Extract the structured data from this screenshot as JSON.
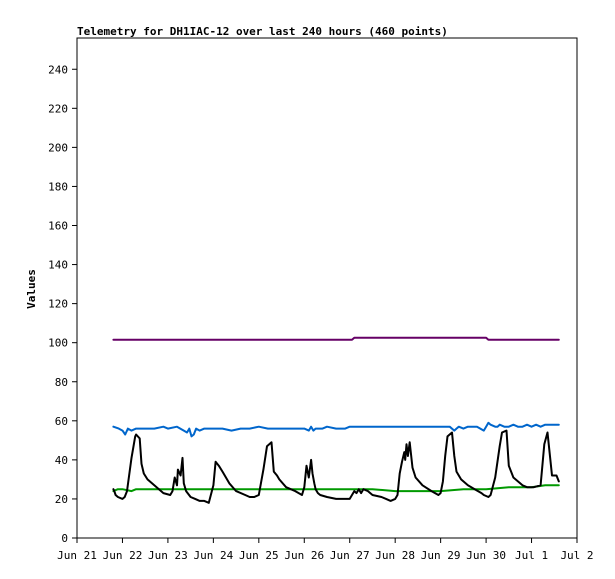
{
  "chart_data": {
    "type": "line",
    "title": "Telemetry for DH1IAC-12 over last 240 hours (460 points)",
    "xlabel": "",
    "ylabel": "Values",
    "ylim": [
      0,
      256
    ],
    "yticks": [
      0,
      20,
      40,
      60,
      80,
      100,
      120,
      140,
      160,
      180,
      200,
      220,
      240
    ],
    "xlim": [
      0,
      11
    ],
    "xticks": [
      {
        "label": "Jun 21",
        "value": 0
      },
      {
        "label": "Jun 22",
        "value": 1
      },
      {
        "label": "Jun 23",
        "value": 2
      },
      {
        "label": "Jun 24",
        "value": 3
      },
      {
        "label": "Jun 25",
        "value": 4
      },
      {
        "label": "Jun 26",
        "value": 5
      },
      {
        "label": "Jun 27",
        "value": 6
      },
      {
        "label": "Jun 28",
        "value": 7
      },
      {
        "label": "Jun 29",
        "value": 8
      },
      {
        "label": "Jun 30",
        "value": 9
      },
      {
        "label": "Jul 1",
        "value": 10
      },
      {
        "label": "Jul 2",
        "value": 11
      }
    ],
    "grid": false,
    "legend": "none",
    "series": [
      {
        "color": "#660066",
        "x": [
          0.8,
          6.05,
          6.1,
          9.0,
          9.05,
          10.6
        ],
        "values": [
          101.5,
          101.5,
          102.5,
          102.5,
          101.5,
          101.5
        ]
      },
      {
        "color": "#0066cc",
        "x": [
          0.8,
          0.92,
          1.0,
          1.06,
          1.12,
          1.2,
          1.3,
          1.5,
          1.7,
          1.9,
          2.0,
          2.2,
          2.35,
          2.42,
          2.47,
          2.52,
          2.57,
          2.62,
          2.7,
          2.8,
          3.0,
          3.2,
          3.4,
          3.6,
          3.8,
          4.0,
          4.2,
          4.4,
          4.6,
          4.8,
          5.0,
          5.1,
          5.15,
          5.2,
          5.25,
          5.3,
          5.4,
          5.5,
          5.7,
          5.9,
          6.0,
          6.2,
          6.5,
          7.0,
          7.5,
          8.0,
          8.2,
          8.3,
          8.35,
          8.4,
          8.5,
          8.6,
          8.8,
          8.95,
          9.0,
          9.05,
          9.1,
          9.2,
          9.25,
          9.3,
          9.4,
          9.5,
          9.6,
          9.7,
          9.8,
          9.9,
          10.0,
          10.1,
          10.2,
          10.3,
          10.4,
          10.5,
          10.6
        ],
        "values": [
          57,
          56,
          55,
          53,
          56,
          55,
          56,
          56,
          56,
          57,
          56,
          57,
          55,
          54,
          56,
          52,
          53,
          56,
          55,
          56,
          56,
          56,
          55,
          56,
          56,
          57,
          56,
          56,
          56,
          56,
          56,
          55,
          57,
          55,
          56,
          56,
          56,
          57,
          56,
          56,
          57,
          57,
          57,
          57,
          57,
          57,
          57,
          55,
          56,
          57,
          56,
          57,
          57,
          55,
          57,
          59,
          58,
          57,
          57,
          58,
          57,
          57,
          58,
          57,
          57,
          58,
          57,
          58,
          57,
          58,
          58,
          58,
          58
        ]
      },
      {
        "color": "#009900",
        "x": [
          0.8,
          0.9,
          1.0,
          1.2,
          1.3,
          1.5,
          1.7,
          2.0,
          2.5,
          3.0,
          3.5,
          4.0,
          4.5,
          5.0,
          5.5,
          6.0,
          6.5,
          7.0,
          7.5,
          8.0,
          8.5,
          9.0,
          9.5,
          10.0,
          10.3,
          10.6
        ],
        "values": [
          24,
          25,
          25,
          24,
          25,
          25,
          25,
          25,
          25,
          25,
          25,
          25,
          25,
          25,
          25,
          25,
          25,
          24,
          24,
          24,
          25,
          25,
          26,
          26,
          27,
          27
        ]
      },
      {
        "color": "#000000",
        "x": [
          0.8,
          0.82,
          0.85,
          0.9,
          1.0,
          1.05,
          1.1,
          1.2,
          1.28,
          1.3,
          1.38,
          1.42,
          1.47,
          1.55,
          1.7,
          1.9,
          2.05,
          2.1,
          2.15,
          2.2,
          2.22,
          2.28,
          2.32,
          2.35,
          2.4,
          2.5,
          2.6,
          2.7,
          2.8,
          2.9,
          3.0,
          3.05,
          3.12,
          3.2,
          3.35,
          3.5,
          3.7,
          3.8,
          3.9,
          4.0,
          4.1,
          4.18,
          4.28,
          4.33,
          4.4,
          4.45,
          4.6,
          4.8,
          4.95,
          5.0,
          5.05,
          5.1,
          5.15,
          5.18,
          5.22,
          5.25,
          5.3,
          5.35,
          5.5,
          5.7,
          5.9,
          6.0,
          6.1,
          6.15,
          6.2,
          6.25,
          6.3,
          6.4,
          6.5,
          6.7,
          6.8,
          6.9,
          7.0,
          7.05,
          7.1,
          7.15,
          7.2,
          7.22,
          7.25,
          7.28,
          7.32,
          7.38,
          7.45,
          7.6,
          7.8,
          7.95,
          8.0,
          8.05,
          8.1,
          8.15,
          8.25,
          8.3,
          8.35,
          8.45,
          8.6,
          8.75,
          8.9,
          8.95,
          9.05,
          9.1,
          9.2,
          9.3,
          9.35,
          9.45,
          9.5,
          9.6,
          9.8,
          9.9,
          10.05,
          10.2,
          10.25,
          10.28,
          10.35,
          10.45,
          10.55,
          10.6
        ],
        "values": [
          25,
          24,
          22,
          21,
          20,
          21,
          24,
          41,
          52,
          53,
          51,
          38,
          33,
          30,
          27,
          23,
          22,
          24,
          31,
          27,
          35,
          32,
          41,
          28,
          24,
          21,
          20,
          19,
          19,
          18,
          27,
          39,
          37,
          34,
          28,
          24,
          22,
          21,
          21,
          22,
          35,
          47,
          49,
          34,
          32,
          30,
          26,
          24,
          22,
          26,
          37,
          31,
          40,
          33,
          28,
          25,
          23,
          22,
          21,
          20,
          20,
          20,
          24,
          23,
          25,
          23,
          25,
          24,
          22,
          21,
          20,
          19,
          20,
          22,
          33,
          39,
          44,
          40,
          48,
          42,
          49,
          36,
          31,
          27,
          24,
          22,
          23,
          29,
          42,
          52,
          54,
          42,
          34,
          30,
          27,
          25,
          23,
          22,
          21,
          22,
          31,
          47,
          54,
          55,
          37,
          31,
          27,
          26,
          26,
          27,
          40,
          48,
          54,
          32,
          32,
          29
        ]
      }
    ]
  }
}
